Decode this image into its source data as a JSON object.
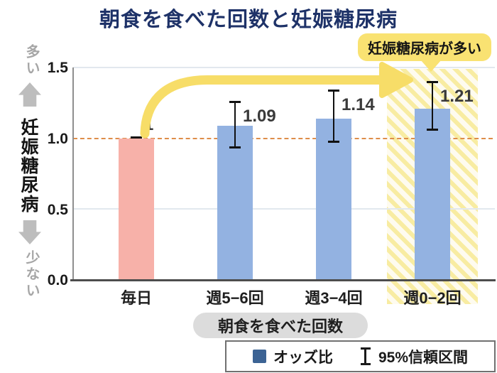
{
  "title": "朝食を食べた回数と妊娠糖尿病",
  "badge": {
    "label": "妊娠糖尿病が多い"
  },
  "y_axis": {
    "more_label": "多い",
    "less_label": "少ない",
    "title": "妊娠糖尿病",
    "ticks": [
      "1.5",
      "1.0",
      "0.5",
      "0.0"
    ]
  },
  "x_axis": {
    "title": "朝食を食べた回数"
  },
  "legend": {
    "odds_label": "オッズ比",
    "ci_label": "95%信頼区間"
  },
  "colors": {
    "title_navy": "#1E3268",
    "pink_bar": "#F7B1A9",
    "blue_bar": "#93B2E1",
    "legend_square": "#3C6394",
    "arrow_yellow": "#F7DD68",
    "badge_yellow": "#F9E272",
    "reference_dash_orange": "#DE8E4A",
    "gray_side_labels": "#A6A6A6"
  },
  "chart_data": {
    "type": "bar",
    "title": "朝食を食べた回数と妊娠糖尿病",
    "xlabel": "朝食を食べた回数",
    "ylabel": "妊娠糖尿病",
    "categories": [
      "毎日",
      "週5−6回",
      "週3−4回",
      "週0−2回"
    ],
    "series": [
      {
        "name": "オッズ比",
        "values": [
          1.0,
          1.09,
          1.14,
          1.21
        ]
      }
    ],
    "value_labels": [
      "1",
      "1.09",
      "1.14",
      "1.21"
    ],
    "ci_low": [
      1.0,
      0.93,
      0.97,
      1.06
    ],
    "ci_high": [
      1.0,
      1.26,
      1.34,
      1.4
    ],
    "ylim": [
      0.0,
      1.5
    ],
    "yticks": [
      0.0,
      0.5,
      1.0,
      1.5
    ],
    "reference_line": 1.0,
    "bar_colors": [
      "#F7B1A9",
      "#93B2E1",
      "#93B2E1",
      "#93B2E1"
    ],
    "highlight_category": "週0−2回",
    "highlight_annotation": "妊娠糖尿病が多い",
    "grid": true,
    "legend_position": "bottom-right",
    "legend_entries": [
      "オッズ比",
      "95%信頼区間"
    ]
  }
}
